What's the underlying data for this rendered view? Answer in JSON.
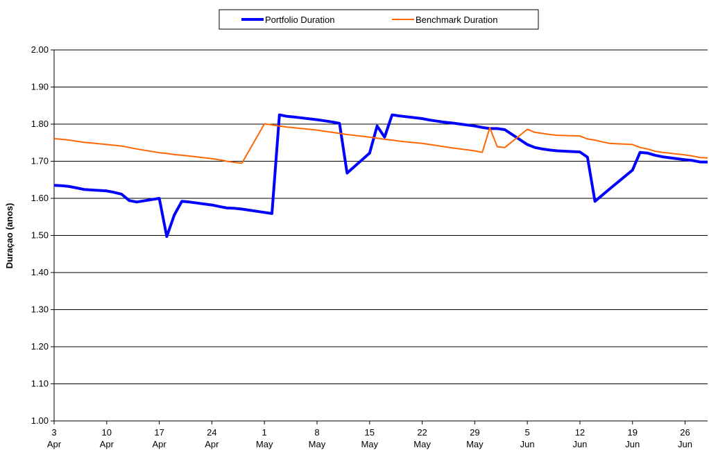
{
  "chart_data": {
    "type": "line",
    "ylabel": "Duraçao (anos)",
    "x": [
      "3 Apr",
      "4 Apr",
      "5 Apr",
      "6 Apr",
      "7 Apr",
      "10 Apr",
      "11 Apr",
      "12 Apr",
      "13 Apr",
      "14 Apr",
      "17 Apr",
      "18 Apr",
      "19 Apr",
      "20 Apr",
      "21 Apr",
      "24 Apr",
      "25 Apr",
      "26 Apr",
      "27 Apr",
      "28 Apr",
      "1 May",
      "2 May",
      "3 May",
      "4 May",
      "5 May",
      "8 May",
      "9 May",
      "10 May",
      "11 May",
      "12 May",
      "15 May",
      "16 May",
      "17 May",
      "18 May",
      "19 May",
      "22 May",
      "23 May",
      "24 May",
      "25 May",
      "26 May",
      "29 May",
      "30 May",
      "31 May",
      "1 Jun",
      "2 Jun",
      "5 Jun",
      "6 Jun",
      "7 Jun",
      "8 Jun",
      "9 Jun",
      "12 Jun",
      "13 Jun",
      "14 Jun",
      "15 Jun",
      "16 Jun",
      "19 Jun",
      "20 Jun",
      "21 Jun",
      "22 Jun",
      "23 Jun",
      "26 Jun",
      "27 Jun",
      "28 Jun",
      "29 Jun"
    ],
    "series": [
      {
        "name": "Portfolio Duration",
        "color": "#0000ff",
        "width": 4,
        "values": [
          1.635,
          1.634,
          1.632,
          1.628,
          1.624,
          1.62,
          1.616,
          1.611,
          1.594,
          1.59,
          1.6,
          1.497,
          1.555,
          1.592,
          1.59,
          1.582,
          1.578,
          1.574,
          1.573,
          1.571,
          1.562,
          1.559,
          1.825,
          1.821,
          1.819,
          1.812,
          1.809,
          1.806,
          1.802,
          1.668,
          1.722,
          1.795,
          1.765,
          1.825,
          1.822,
          1.815,
          1.811,
          1.808,
          1.805,
          1.803,
          1.795,
          1.791,
          1.788,
          1.788,
          1.785,
          1.745,
          1.737,
          1.733,
          1.73,
          1.728,
          1.725,
          1.711,
          1.592,
          1.609,
          1.626,
          1.676,
          1.724,
          1.722,
          1.716,
          1.712,
          1.704,
          1.702,
          1.698,
          1.698
        ]
      },
      {
        "name": "Benchmark Duration",
        "color": "#ff6600",
        "width": 2,
        "values": [
          1.761,
          1.759,
          1.757,
          1.754,
          1.751,
          1.745,
          1.743,
          1.741,
          1.737,
          1.733,
          1.723,
          1.721,
          1.718,
          1.716,
          1.714,
          1.707,
          1.704,
          1.7,
          1.697,
          1.695,
          1.801,
          1.798,
          1.795,
          1.792,
          1.79,
          1.784,
          1.781,
          1.778,
          1.775,
          1.772,
          1.765,
          1.762,
          1.759,
          1.757,
          1.754,
          1.748,
          1.745,
          1.742,
          1.739,
          1.736,
          1.728,
          1.724,
          1.79,
          1.739,
          1.737,
          1.786,
          1.778,
          1.775,
          1.772,
          1.77,
          1.768,
          1.76,
          1.757,
          1.752,
          1.748,
          1.745,
          1.737,
          1.733,
          1.727,
          1.724,
          1.717,
          1.714,
          1.71,
          1.709
        ]
      }
    ],
    "xlim": [
      "3 Apr",
      "29 Jun"
    ],
    "xticks": [
      "3 Apr",
      "10 Apr",
      "17 Apr",
      "24 Apr",
      "1 May",
      "8 May",
      "15 May",
      "22 May",
      "29 May",
      "5 Jun",
      "12 Jun",
      "19 Jun",
      "26 Jun"
    ],
    "ylim": [
      1.0,
      2.0
    ],
    "yticks": [
      {
        "value": 1.0,
        "label": "1.00"
      },
      {
        "value": 1.1,
        "label": "1.10"
      },
      {
        "value": 1.2,
        "label": "1.20"
      },
      {
        "value": 1.3,
        "label": "1.30"
      },
      {
        "value": 1.4,
        "label": "1.40"
      },
      {
        "value": 1.5,
        "label": "1.50"
      },
      {
        "value": 1.6,
        "label": "1.60"
      },
      {
        "value": 1.7,
        "label": "1.70"
      },
      {
        "value": 1.8,
        "label": "1.80"
      },
      {
        "value": 1.9,
        "label": "1.90"
      },
      {
        "value": 2.0,
        "label": "2.00"
      }
    ],
    "grid": true,
    "legend": "top"
  }
}
